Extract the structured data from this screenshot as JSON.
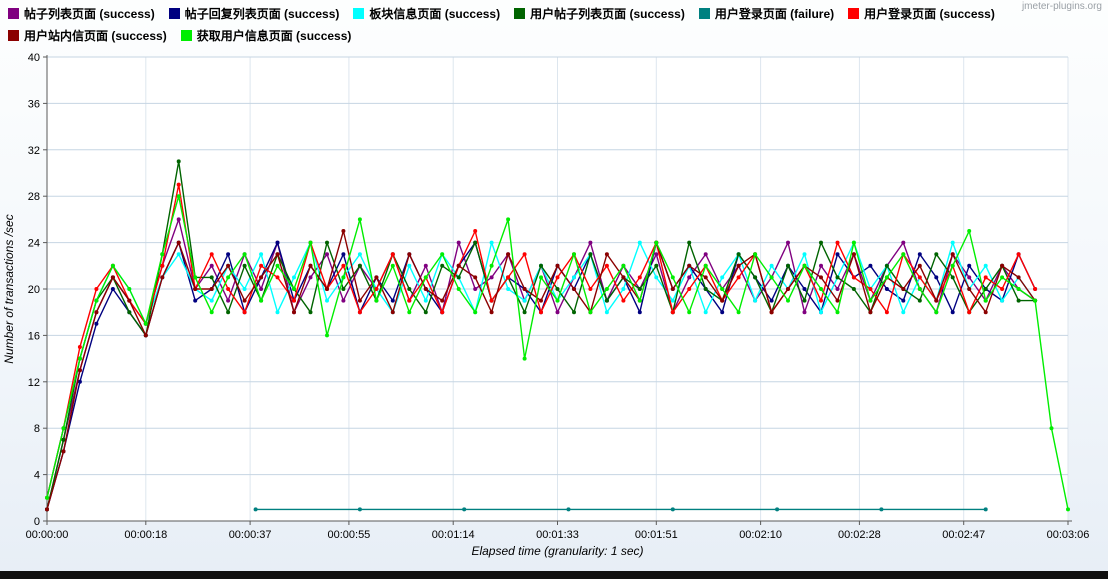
{
  "watermark": "jmeter-plugins.org",
  "legend": {
    "items": [
      {
        "label": "帖子列表页面 (success)",
        "color": "#800080"
      },
      {
        "label": "帖子回复列表页面 (success)",
        "color": "#000080"
      },
      {
        "label": "板块信息页面 (success)",
        "color": "#00FFFF"
      },
      {
        "label": "用户帖子列表页面 (success)",
        "color": "#006400"
      },
      {
        "label": "用户登录页面 (failure)",
        "color": "#008080"
      },
      {
        "label": "用户登录页面 (success)",
        "color": "#FF0000"
      },
      {
        "label": "用户站内信页面 (success)",
        "color": "#8B0000"
      },
      {
        "label": "获取用户信息页面 (success)",
        "color": "#00EE00"
      }
    ]
  },
  "chart_data": {
    "type": "line",
    "title": "",
    "xlabel": "Elapsed time (granularity: 1 sec)",
    "ylabel": "Number of transactions /sec",
    "ylim": [
      0,
      40
    ],
    "y_ticks": [
      0,
      4,
      8,
      12,
      16,
      20,
      24,
      28,
      32,
      36,
      40
    ],
    "x_max": 186,
    "x_ticks": [
      {
        "t": 0,
        "label": "00:00:00"
      },
      {
        "t": 18,
        "label": "00:00:18"
      },
      {
        "t": 37,
        "label": "00:00:37"
      },
      {
        "t": 55,
        "label": "00:00:55"
      },
      {
        "t": 74,
        "label": "00:01:14"
      },
      {
        "t": 93,
        "label": "00:01:33"
      },
      {
        "t": 111,
        "label": "00:01:51"
      },
      {
        "t": 130,
        "label": "00:02:10"
      },
      {
        "t": 148,
        "label": "00:02:28"
      },
      {
        "t": 167,
        "label": "00:02:47"
      },
      {
        "t": 186,
        "label": "00:03:06"
      }
    ],
    "series": [
      {
        "name": "帖子列表页面 (success)",
        "color": "#800080",
        "x_start": 0,
        "x_step": 3,
        "values": [
          1,
          7,
          13,
          18,
          21,
          19,
          17,
          22,
          26,
          20,
          22,
          19,
          23,
          20,
          24,
          18,
          21,
          23,
          19,
          22,
          20,
          23,
          19,
          22,
          18,
          24,
          20,
          21,
          23,
          19,
          22,
          18,
          21,
          24,
          19,
          22,
          20,
          23,
          18,
          21,
          23,
          20,
          22,
          19,
          21,
          24,
          18,
          22,
          20,
          23,
          19,
          22,
          24,
          20,
          18,
          23,
          21,
          19,
          22,
          20,
          19
        ]
      },
      {
        "name": "帖子回复列表页面 (success)",
        "color": "#000080",
        "x_start": 0,
        "x_step": 3,
        "values": [
          1,
          6,
          12,
          17,
          20,
          18,
          16,
          21,
          24,
          19,
          20,
          23,
          18,
          21,
          24,
          19,
          22,
          20,
          23,
          18,
          21,
          19,
          23,
          20,
          18,
          22,
          24,
          19,
          21,
          20,
          18,
          22,
          20,
          23,
          19,
          21,
          18,
          24,
          20,
          22,
          20,
          18,
          23,
          21,
          19,
          22,
          20,
          18,
          23,
          21,
          22,
          20,
          19,
          23,
          21,
          18,
          22,
          20,
          19,
          23,
          20
        ]
      },
      {
        "name": "板块信息页面 (success)",
        "color": "#00FFFF",
        "x_start": 0,
        "x_step": 3,
        "values": [
          2,
          8,
          14,
          19,
          22,
          20,
          17,
          21,
          23,
          20,
          19,
          22,
          20,
          23,
          18,
          21,
          24,
          19,
          21,
          23,
          20,
          18,
          22,
          19,
          23,
          21,
          18,
          24,
          20,
          19,
          22,
          19,
          21,
          23,
          18,
          20,
          24,
          21,
          19,
          22,
          18,
          21,
          23,
          19,
          22,
          20,
          23,
          18,
          21,
          24,
          20,
          22,
          18,
          21,
          19,
          24,
          20,
          22,
          19,
          21,
          19
        ]
      },
      {
        "name": "用户帖子列表页面 (success)",
        "color": "#006400",
        "x_start": 0,
        "x_step": 3,
        "values": [
          1,
          7,
          14,
          19,
          21,
          18,
          16,
          23,
          31,
          21,
          21,
          18,
          22,
          19,
          23,
          20,
          18,
          24,
          20,
          22,
          19,
          23,
          20,
          18,
          22,
          21,
          24,
          19,
          21,
          18,
          22,
          20,
          18,
          23,
          19,
          21,
          20,
          22,
          18,
          24,
          20,
          19,
          23,
          21,
          18,
          22,
          19,
          24,
          21,
          20,
          18,
          22,
          20,
          19,
          23,
          21,
          18,
          20,
          22,
          19,
          19
        ]
      },
      {
        "name": "用户登录页面 (failure)",
        "color": "#008080",
        "x": [
          38,
          57,
          76,
          95,
          114,
          133,
          152,
          171
        ],
        "values": [
          1,
          1,
          1,
          1,
          1,
          1,
          1,
          1
        ]
      },
      {
        "name": "用户登录页面 (success)",
        "color": "#FF0000",
        "x_start": 0,
        "x_step": 3,
        "values": [
          2,
          8,
          15,
          20,
          22,
          19,
          17,
          22,
          29,
          20,
          23,
          20,
          18,
          22,
          21,
          19,
          24,
          20,
          22,
          18,
          20,
          23,
          19,
          21,
          18,
          22,
          25,
          19,
          21,
          23,
          18,
          21,
          23,
          20,
          22,
          19,
          21,
          24,
          18,
          20,
          22,
          19,
          21,
          23,
          18,
          20,
          22,
          19,
          24,
          21,
          20,
          18,
          23,
          21,
          19,
          22,
          18,
          21,
          20,
          23,
          20
        ]
      },
      {
        "name": "用户站内信页面 (success)",
        "color": "#8B0000",
        "x_start": 0,
        "x_step": 3,
        "values": [
          1,
          6,
          13,
          18,
          21,
          19,
          16,
          21,
          24,
          20,
          20,
          22,
          19,
          21,
          23,
          18,
          22,
          20,
          25,
          19,
          21,
          18,
          23,
          20,
          19,
          22,
          21,
          18,
          23,
          20,
          19,
          22,
          20,
          18,
          23,
          21,
          19,
          24,
          20,
          22,
          21,
          19,
          22,
          23,
          18,
          20,
          22,
          21,
          19,
          23,
          18,
          21,
          20,
          22,
          19,
          23,
          20,
          18,
          22,
          21,
          19
        ]
      },
      {
        "name": "获取用户信息页面 (success)",
        "color": "#00EE00",
        "x_start": 0,
        "x_step": 3,
        "values": [
          2,
          8,
          14,
          19,
          22,
          20,
          17,
          23,
          28,
          21,
          18,
          21,
          23,
          19,
          22,
          20,
          24,
          16,
          21,
          26,
          19,
          22,
          18,
          21,
          23,
          20,
          18,
          22,
          26,
          14,
          21,
          19,
          23,
          18,
          20,
          22,
          19,
          24,
          21,
          18,
          22,
          20,
          18,
          23,
          21,
          19,
          22,
          20,
          18,
          24,
          19,
          21,
          23,
          20,
          18,
          22,
          25,
          19,
          21,
          20,
          19,
          8,
          1
        ]
      }
    ]
  }
}
